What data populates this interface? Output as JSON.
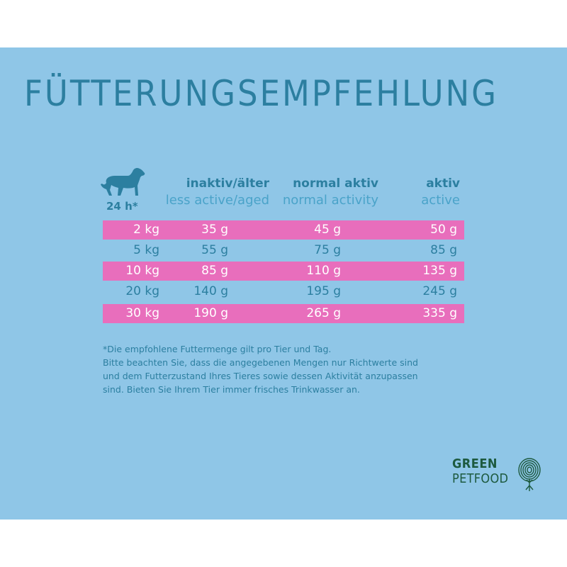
{
  "title": "FÜTTERUNGSEMPFEHLUNG",
  "header": {
    "per_day": "24 h*",
    "columns": [
      {
        "de": "inaktiv/älter",
        "en": "less active/aged"
      },
      {
        "de": "normal aktiv",
        "en": "normal activity"
      },
      {
        "de": "aktiv",
        "en": "active"
      }
    ]
  },
  "rows": [
    {
      "weight": "2 kg",
      "inactive": "35 g",
      "normal": "45 g",
      "active": "50 g"
    },
    {
      "weight": "5 kg",
      "inactive": "55 g",
      "normal": "75 g",
      "active": "85 g"
    },
    {
      "weight": "10 kg",
      "inactive": "85 g",
      "normal": "110 g",
      "active": "135 g"
    },
    {
      "weight": "20 kg",
      "inactive": "140 g",
      "normal": "195 g",
      "active": "245 g"
    },
    {
      "weight": "30 kg",
      "inactive": "190 g",
      "normal": "265 g",
      "active": "335 g"
    }
  ],
  "note": [
    "*Die empfohlene Futtermenge gilt pro Tier und Tag.",
    "Bitte beachten Sie, dass die angegebenen Mengen nur Richtwerte sind",
    "und dem Futterzustand Ihres Tieres sowie dessen Aktivität anzupassen",
    "sind. Bieten Sie Ihrem Tier immer frisches Trinkwasser an."
  ],
  "logo": {
    "line1": "GREEN",
    "line2": "PETFOOD"
  },
  "colors": {
    "background": "#8fc6e7",
    "accent_pink": "#e86ebc",
    "text_blue": "#2c7fa0",
    "logo_green": "#1d5a3f"
  },
  "icons": {
    "animal": "dog-icon",
    "logo": "fingerprint-tree-icon"
  }
}
